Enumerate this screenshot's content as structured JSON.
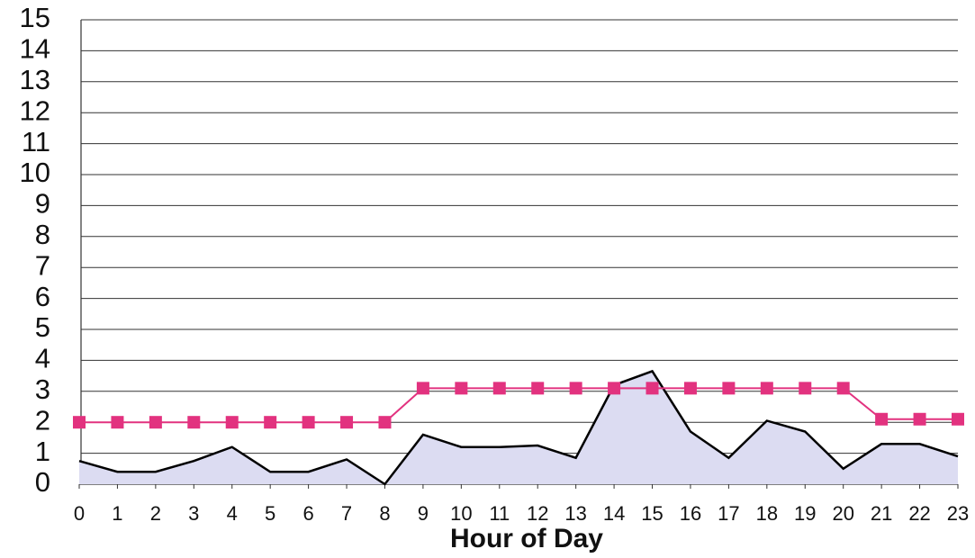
{
  "chart_data": {
    "type": "line",
    "x_label": "Hour of Day",
    "x": [
      0,
      1,
      2,
      3,
      4,
      5,
      6,
      7,
      8,
      9,
      10,
      11,
      12,
      13,
      14,
      15,
      16,
      17,
      18,
      19,
      20,
      21,
      22,
      23
    ],
    "xlim": [
      0,
      23
    ],
    "xticks": [
      0,
      1,
      2,
      3,
      4,
      5,
      6,
      7,
      8,
      9,
      10,
      11,
      12,
      13,
      14,
      15,
      16,
      17,
      18,
      19,
      20,
      21,
      22,
      23
    ],
    "ylim": [
      0,
      15
    ],
    "yticks": [
      0,
      1,
      2,
      3,
      4,
      5,
      6,
      7,
      8,
      9,
      10,
      11,
      12,
      13,
      14,
      15
    ],
    "grid": true,
    "series": [
      {
        "type": "area",
        "color": "#000000",
        "fill": "#dcdcf2",
        "values": [
          0.75,
          0.4,
          0.4,
          0.75,
          1.2,
          0.4,
          0.4,
          0.8,
          0,
          1.6,
          1.2,
          1.2,
          1.25,
          0.85,
          3.2,
          3.65,
          1.7,
          0.85,
          2.05,
          1.7,
          0.5,
          1.3,
          1.3,
          0.9
        ]
      },
      {
        "type": "line",
        "color": "#e2327f",
        "marker": "square",
        "values": [
          2,
          2,
          2,
          2,
          2,
          2,
          2,
          2,
          2,
          3.1,
          3.1,
          3.1,
          3.1,
          3.1,
          3.1,
          3.1,
          3.1,
          3.1,
          3.1,
          3.1,
          3.1,
          2.1,
          2.1,
          2.1
        ]
      }
    ]
  }
}
